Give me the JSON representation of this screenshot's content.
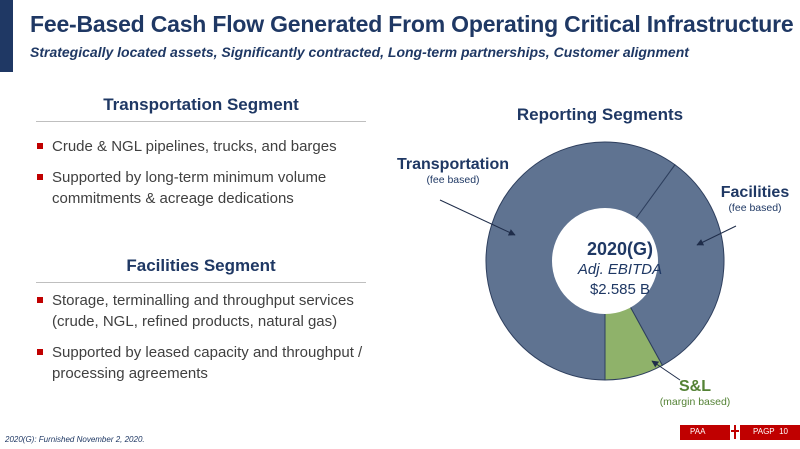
{
  "header": {
    "title": "Fee-Based Cash Flow Generated From Operating Critical Infrastructure",
    "subtitle": "Strategically located assets, Significantly contracted, Long-term partnerships, Customer alignment"
  },
  "transportation_segment": {
    "heading": "Transportation Segment",
    "bullets": [
      "Crude & NGL pipelines, trucks, and barges",
      "Supported by long-term minimum volume commitments & acreage dedications"
    ]
  },
  "facilities_segment": {
    "heading": "Facilities Segment",
    "bullets": [
      "Storage, terminalling and throughput services (crude, NGL, refined products, natural gas)",
      "Supported by leased capacity and throughput / processing agreements"
    ]
  },
  "chart_data": {
    "type": "pie",
    "title": "Reporting Segments",
    "center": {
      "year": "2020(G)",
      "metric": "Adj. EBITDA",
      "amount": "$2.585 B"
    },
    "slices": [
      {
        "name": "Transportation",
        "note": "(fee based)",
        "value": 60,
        "color": "#5f7391"
      },
      {
        "name": "Facilities",
        "note": "(fee based)",
        "value": 32,
        "color": "#5f7391"
      },
      {
        "name": "S&L",
        "note": "(margin based)",
        "value": 8,
        "color": "#8fb26a"
      }
    ]
  },
  "footer": {
    "footnote": "2020(G): Furnished November 2, 2020.",
    "left_tag": "PAA",
    "right_tag": "PAGP",
    "page_number": "10"
  }
}
